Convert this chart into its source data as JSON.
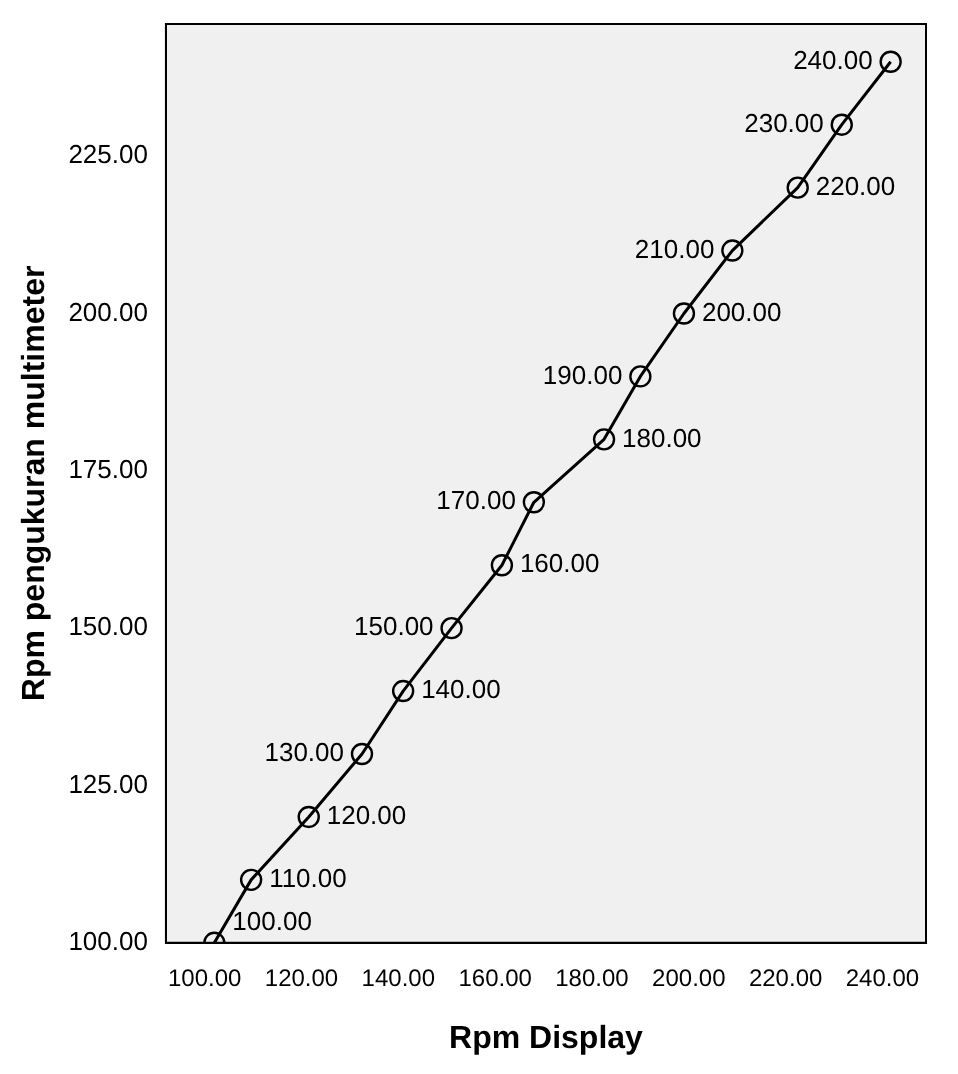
{
  "chart_data": {
    "type": "line",
    "xlabel": "Rpm Display",
    "ylabel": "Rpm pengukuran multimeter",
    "x": [
      102,
      109.6,
      121.5,
      132.5,
      141,
      151,
      161.4,
      168,
      182.5,
      190,
      199,
      209,
      222.5,
      231.6,
      241.7
    ],
    "values": [
      100,
      110,
      120,
      130,
      140,
      150,
      160,
      170,
      180,
      190,
      200,
      210,
      220,
      230,
      240
    ],
    "value_labels": [
      "100.00",
      "110.00",
      "120.00",
      "130.00",
      "140.00",
      "150.00",
      "160.00",
      "170.00",
      "180.00",
      "190.00",
      "200.00",
      "210.00",
      "220.00",
      "230.00",
      "240.00"
    ],
    "color": "#000000",
    "marker": "circle",
    "line_style": "solid",
    "grid": false,
    "legend": false,
    "xlim": [
      92,
      249
    ],
    "xticks": [
      {
        "value": 100,
        "label": "100.00"
      },
      {
        "value": 120,
        "label": "120.00"
      },
      {
        "value": 140,
        "label": "140.00"
      },
      {
        "value": 160,
        "label": "160.00"
      },
      {
        "value": 180,
        "label": "180.00"
      },
      {
        "value": 200,
        "label": "200.00"
      },
      {
        "value": 220,
        "label": "220.00"
      },
      {
        "value": 240,
        "label": "240.00"
      }
    ],
    "ylim": [
      100,
      246
    ],
    "yticks": [
      {
        "value": 100,
        "label": "100.00"
      },
      {
        "value": 125,
        "label": "125.00"
      },
      {
        "value": 150,
        "label": "150.00"
      },
      {
        "value": 175,
        "label": "175.00"
      },
      {
        "value": 200,
        "label": "200.00"
      },
      {
        "value": 225,
        "label": "225.00"
      }
    ]
  }
}
